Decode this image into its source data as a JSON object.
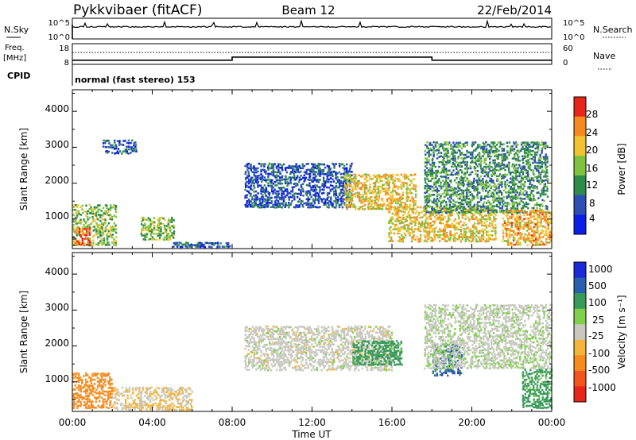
{
  "header": {
    "station": "Pykkvibaer (fitACF)",
    "beam": "Beam 12",
    "date": "22/Feb/2014"
  },
  "noise_panel": {
    "left_label": "N.Sky",
    "right_label": "N.Search",
    "left_ticks": [
      "10^5",
      "10^0"
    ],
    "right_ticks": [
      "10^5",
      "10^0"
    ]
  },
  "freq_panel": {
    "left_label_1": "Freq.",
    "left_label_2": "[MHz]",
    "right_label": "Nave",
    "left_ticks": [
      "18",
      "8"
    ],
    "right_ticks": [
      "60",
      "0"
    ]
  },
  "cpid": {
    "label": "CPID",
    "text": "normal (fast stereo) 153"
  },
  "power_panel": {
    "ylabel": "Slant Range [km]",
    "yticks": [
      "1000",
      "2000",
      "3000",
      "4000"
    ],
    "colorbar_label": "Power [dB]",
    "colorbar_ticks": [
      "4",
      "8",
      "12",
      "16",
      "20",
      "24",
      "28"
    ],
    "colorbar_colors": [
      "#0a1ee6",
      "#2d4fb4",
      "#2e8b4a",
      "#7fc23f",
      "#f2c230",
      "#f58a1e",
      "#e8251a"
    ]
  },
  "velocity_panel": {
    "ylabel": "Slant Range [km]",
    "yticks": [
      "1000",
      "2000",
      "3000",
      "4000"
    ],
    "colorbar_label": "Velocity [m s⁻¹]",
    "colorbar_ticks": [
      "-1000",
      "-500",
      "-100",
      "-25",
      "25",
      "100",
      "500",
      "1000"
    ],
    "colorbar_colors": [
      "#e8251a",
      "#f2541c",
      "#f78b1e",
      "#f2b43a",
      "#c8c8c0",
      "#7fd04a",
      "#3a9a5a",
      "#2a5fb0",
      "#1a2ad8"
    ]
  },
  "xaxis": {
    "label": "Time UT",
    "ticks": [
      "00:00",
      "04:00",
      "08:00",
      "12:00",
      "16:00",
      "20:00",
      "00:00"
    ]
  },
  "chart_data": {
    "type": "heatmap",
    "title": "Pykkvibaer (fitACF) Beam 12 22/Feb/2014",
    "xlabel": "Time UT",
    "ylabel": "Slant Range [km]",
    "xlim_hours": [
      0,
      24
    ],
    "ylim_km": [
      180,
      4600
    ],
    "frequency_mhz_segments": [
      {
        "from": 0,
        "to": 8,
        "value": 10
      },
      {
        "from": 8,
        "to": 18,
        "value": 11.5
      },
      {
        "from": 18,
        "to": 24,
        "value": 10
      }
    ],
    "power_regions_db": [
      {
        "t0": 0.0,
        "t1": 2.2,
        "r0": 300,
        "r1": 1450,
        "db": 16
      },
      {
        "t0": 0.1,
        "t1": 0.9,
        "r0": 300,
        "r1": 800,
        "db": 26
      },
      {
        "t0": 1.5,
        "t1": 3.2,
        "r0": 2850,
        "r1": 3250,
        "db": 8
      },
      {
        "t0": 3.4,
        "t1": 5.1,
        "r0": 450,
        "r1": 1100,
        "db": 16
      },
      {
        "t0": 5.0,
        "t1": 8.0,
        "r0": 250,
        "r1": 400,
        "db": 8
      },
      {
        "t0": 8.6,
        "t1": 14.0,
        "r0": 1350,
        "r1": 2600,
        "db": 8
      },
      {
        "t0": 13.6,
        "t1": 17.2,
        "r0": 1300,
        "r1": 2300,
        "db": 20
      },
      {
        "t0": 15.8,
        "t1": 21.2,
        "r0": 400,
        "r1": 1400,
        "db": 20
      },
      {
        "t0": 17.6,
        "t1": 23.8,
        "r0": 1200,
        "r1": 3200,
        "db": 12
      },
      {
        "t0": 21.5,
        "t1": 24.0,
        "r0": 300,
        "r1": 1300,
        "db": 22
      }
    ],
    "velocity_regions_ms": [
      {
        "t0": 0.0,
        "t1": 2.0,
        "r0": 300,
        "r1": 1300,
        "v": -300
      },
      {
        "t0": 2.0,
        "t1": 6.0,
        "r0": 250,
        "r1": 900,
        "v": -25
      },
      {
        "t0": 8.6,
        "t1": 16.0,
        "r0": 1350,
        "r1": 2600,
        "v": 0
      },
      {
        "t0": 14.0,
        "t1": 16.5,
        "r0": 1500,
        "r1": 2200,
        "v": 200
      },
      {
        "t0": 18.0,
        "t1": 19.5,
        "r0": 1200,
        "r1": 2100,
        "v": 700
      },
      {
        "t0": 17.6,
        "t1": 24.0,
        "r0": 1400,
        "r1": 3200,
        "v": 10
      },
      {
        "t0": 22.5,
        "t1": 24.0,
        "r0": 300,
        "r1": 1400,
        "v": 200
      }
    ]
  }
}
